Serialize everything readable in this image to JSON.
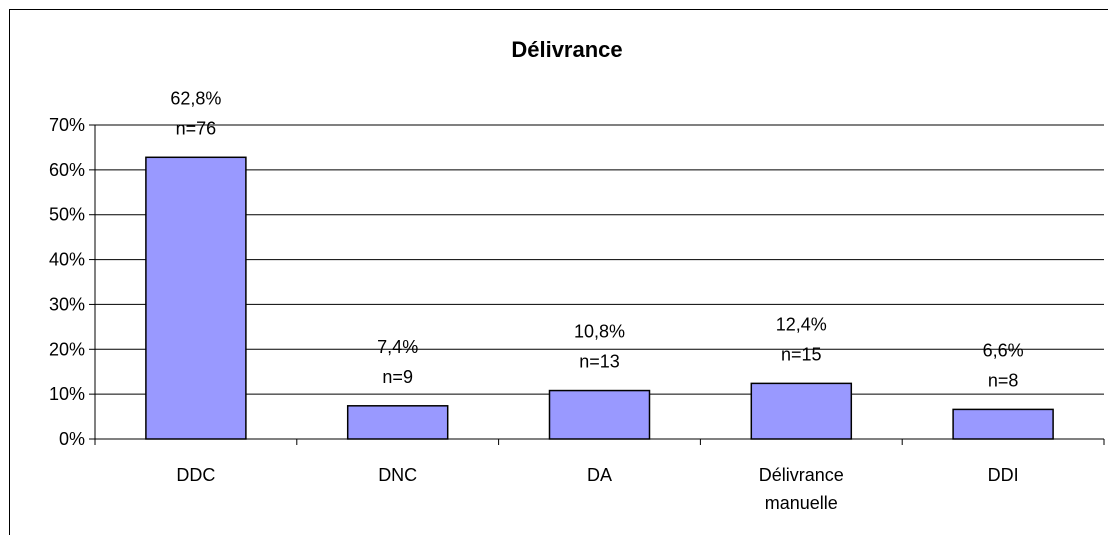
{
  "chart_data": {
    "type": "bar",
    "title": "Délivrance",
    "xlabel": "",
    "ylabel": "",
    "ylim": [
      0,
      70
    ],
    "yticks": [
      "0%",
      "10%",
      "20%",
      "30%",
      "40%",
      "50%",
      "60%",
      "70%"
    ],
    "grid": true,
    "categories": [
      [
        "DDC"
      ],
      [
        "DNC"
      ],
      [
        "DA"
      ],
      [
        "Délivrance",
        "manuelle"
      ],
      [
        "DDI"
      ]
    ],
    "values": [
      62.8,
      7.4,
      10.8,
      12.4,
      6.6
    ],
    "labels": [
      [
        "62,8%",
        "n=76"
      ],
      [
        "7,4%",
        "n=9"
      ],
      [
        "10,8%",
        "n=13"
      ],
      [
        "12,4%",
        "n=15"
      ],
      [
        "6,6%",
        "n=8"
      ]
    ],
    "colors": {
      "bar": "#9999ff",
      "bar_border": "#000000",
      "grid": "#000000"
    }
  }
}
